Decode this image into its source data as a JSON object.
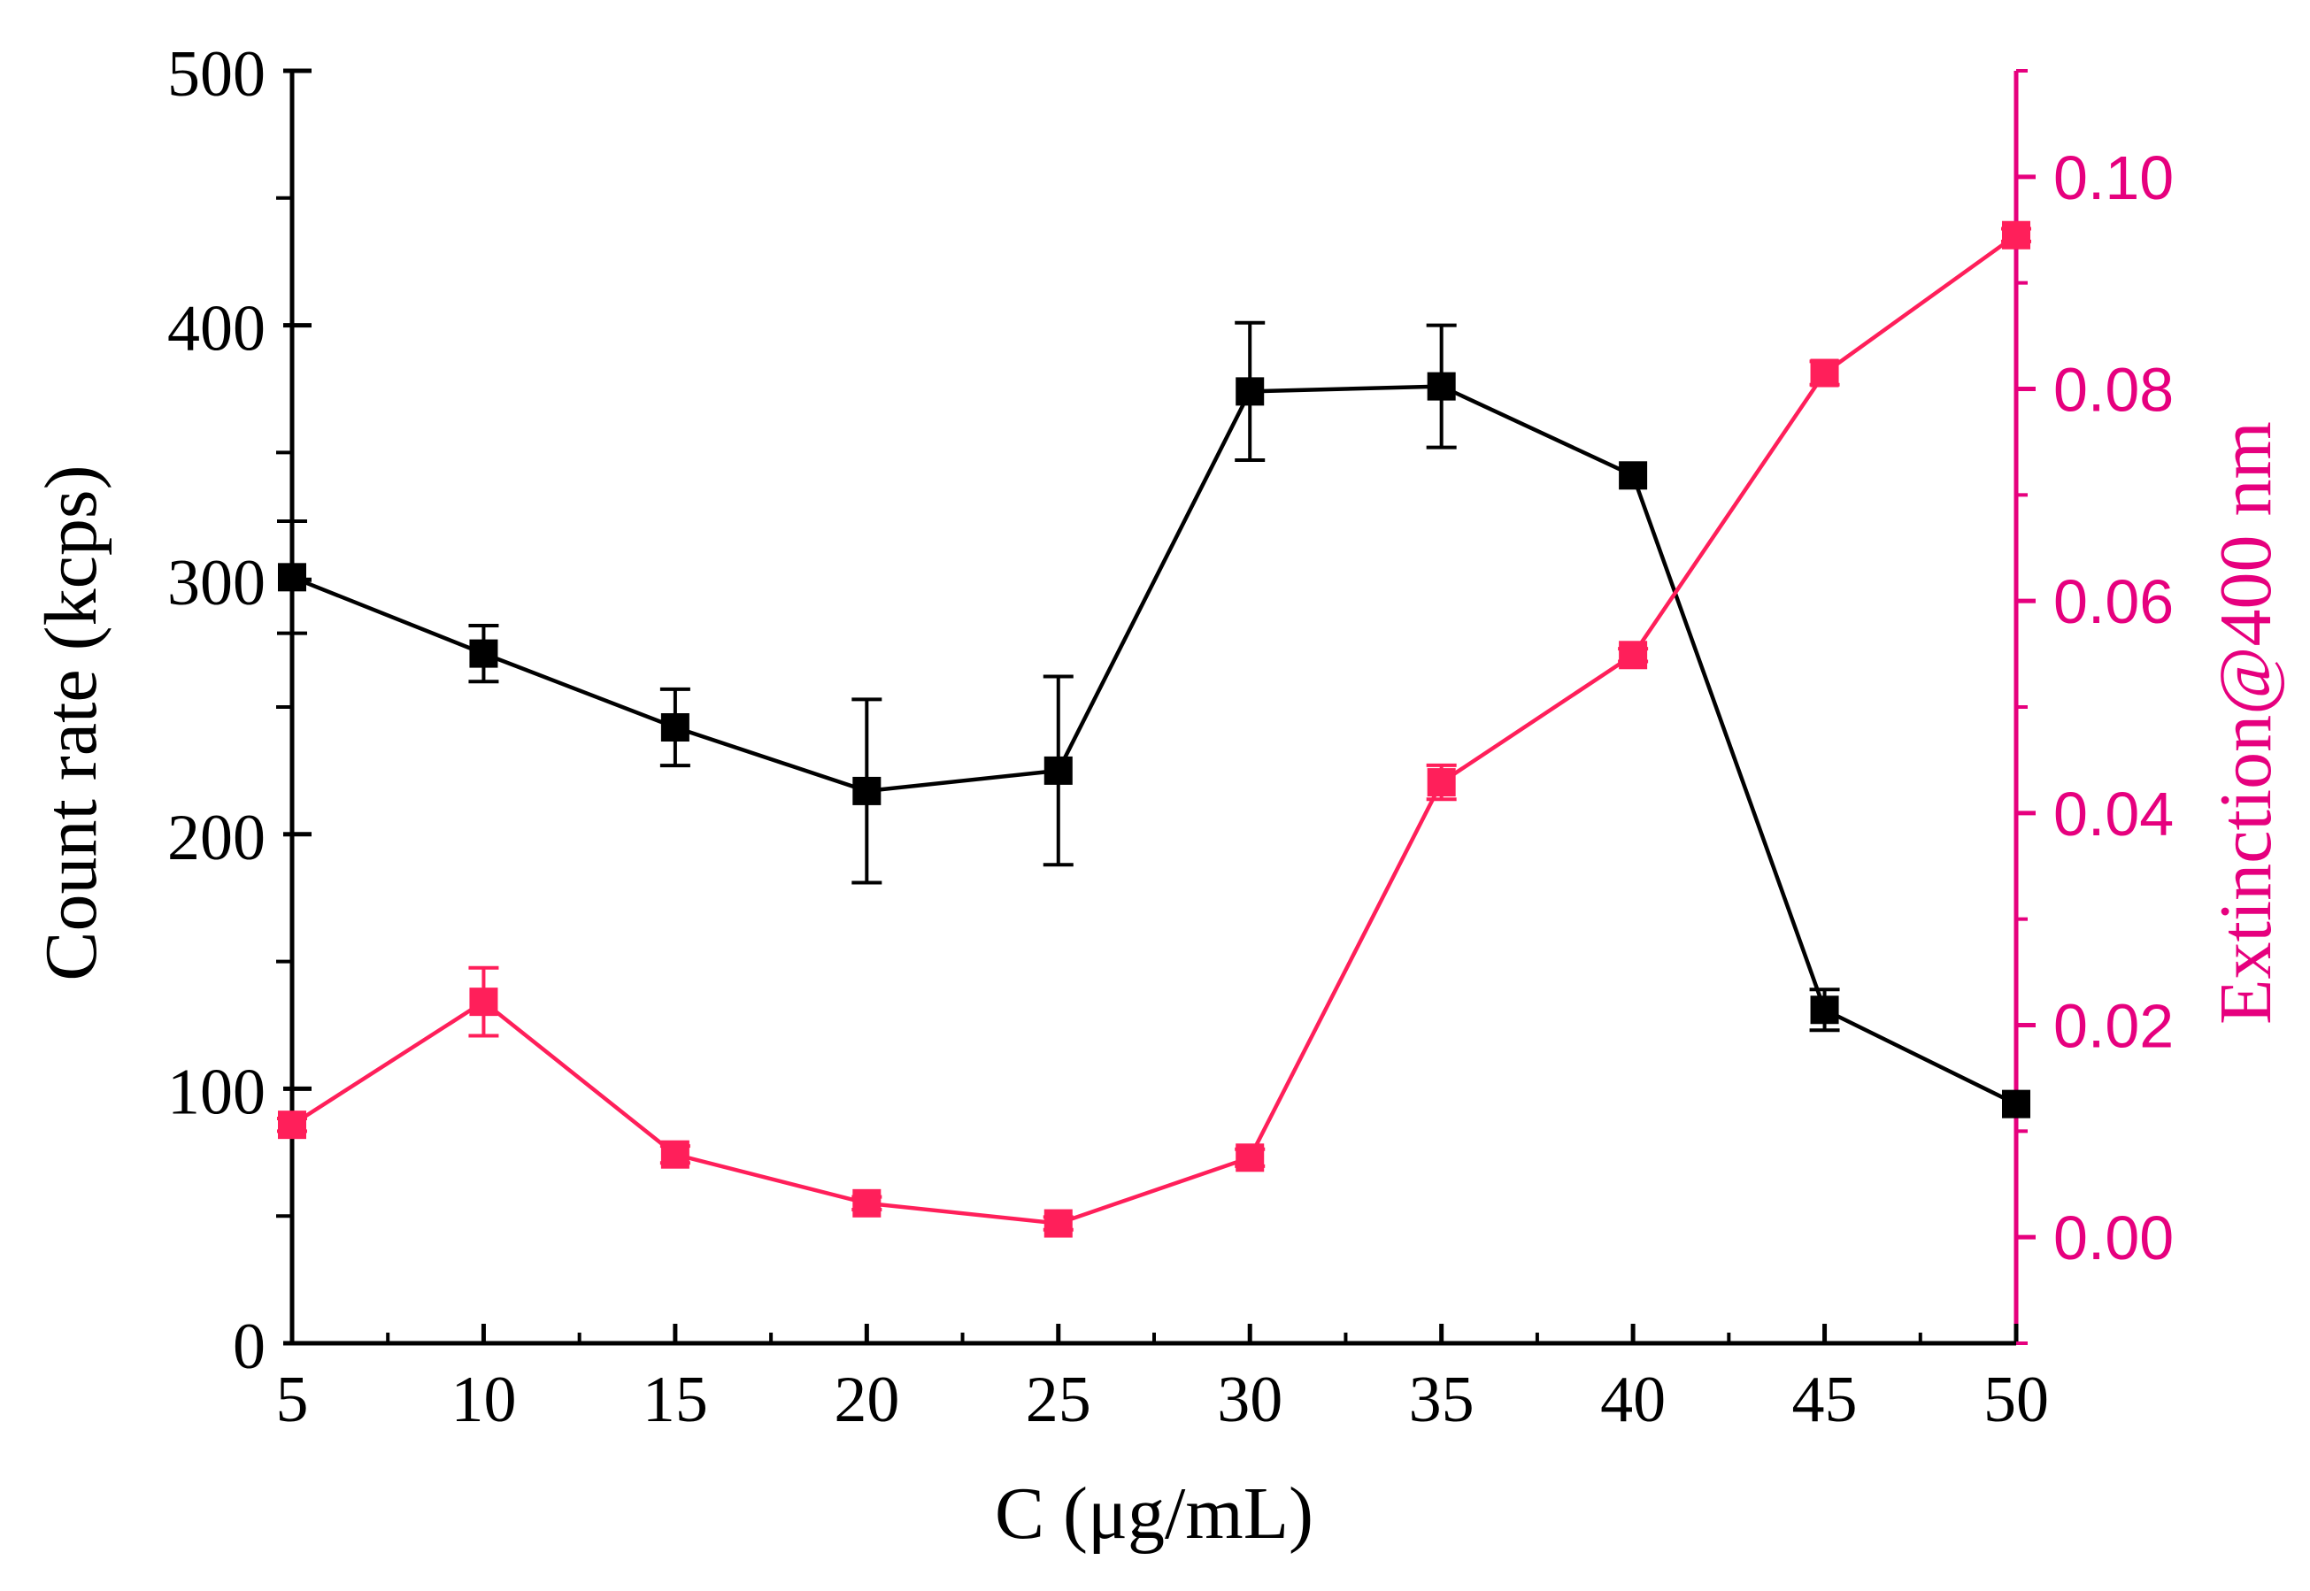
{
  "chart_data": {
    "type": "line",
    "xlabel": "C (μg/mL)",
    "ylabel": "Count rate  (kcps)",
    "y2label": "Extinction@400 nm",
    "xlim": [
      5,
      50
    ],
    "ylim": [
      0,
      500
    ],
    "y2lim": [
      -0.01,
      0.11
    ],
    "x": [
      5,
      10,
      15,
      20,
      25,
      30,
      35,
      40,
      45,
      50
    ],
    "xticks": [
      "5",
      "10",
      "15",
      "20",
      "25",
      "30",
      "35",
      "40",
      "45",
      "50"
    ],
    "yticks": [
      "0",
      "100",
      "200",
      "300",
      "400",
      "500"
    ],
    "y2ticks": [
      "0.00",
      "0.02",
      "0.04",
      "0.06",
      "0.08",
      "0.10"
    ],
    "series": [
      {
        "name": "Count rate",
        "axis": "left",
        "color": "#000000",
        "values": [
          301,
          271,
          242,
          217,
          225,
          374,
          376,
          341,
          131,
          94
        ],
        "errors": [
          22,
          11,
          15,
          36,
          37,
          27,
          24,
          0,
          8,
          0
        ]
      },
      {
        "name": "Extinction@400 nm",
        "axis": "right",
        "color": "#ff1f5a",
        "values": [
          0.0106,
          0.0222,
          0.0078,
          0.0032,
          0.0013,
          0.0075,
          0.0429,
          0.0549,
          0.0815,
          0.0945
        ],
        "errors": [
          0.0006,
          0.0032,
          0.0008,
          0.0006,
          0.0006,
          0.0008,
          0.0016,
          0.0006,
          0.0011,
          0.0006
        ]
      }
    ],
    "axis_colors": {
      "left": "#000000",
      "right": "#e6007e"
    }
  }
}
